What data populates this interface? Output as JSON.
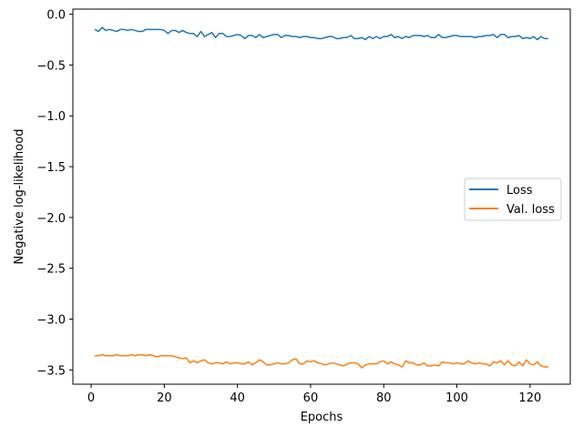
{
  "chart_data": {
    "type": "line",
    "title": "",
    "xlabel": "Epochs",
    "ylabel": "Negative log-likelihood",
    "xlim": [
      -5,
      131
    ],
    "ylim": [
      -3.64,
      0.05
    ],
    "xticks": [
      0,
      20,
      40,
      60,
      80,
      100,
      120
    ],
    "yticks": [
      0.0,
      -0.5,
      -1.0,
      -1.5,
      -2.0,
      -2.5,
      -3.0,
      -3.5
    ],
    "ytick_labels": [
      "0.0",
      "−0.5",
      "−1.0",
      "−1.5",
      "−2.0",
      "−2.5",
      "−3.0",
      "−3.5"
    ],
    "grid": false,
    "legend_position": "center-right",
    "series": [
      {
        "name": "Loss",
        "color": "#1f77b4",
        "base": -0.2,
        "start": -0.15,
        "end": -0.24,
        "points": [
          [
            1,
            -0.15
          ],
          [
            2,
            -0.17
          ],
          [
            3,
            -0.13
          ],
          [
            4,
            -0.16
          ],
          [
            5,
            -0.15
          ],
          [
            6,
            -0.16
          ],
          [
            7,
            -0.17
          ],
          [
            8,
            -0.15
          ],
          [
            9,
            -0.15
          ],
          [
            10,
            -0.16
          ],
          [
            11,
            -0.15
          ],
          [
            12,
            -0.16
          ],
          [
            13,
            -0.17
          ],
          [
            14,
            -0.17
          ],
          [
            15,
            -0.15
          ],
          [
            16,
            -0.15
          ],
          [
            17,
            -0.15
          ],
          [
            18,
            -0.15
          ],
          [
            19,
            -0.15
          ],
          [
            20,
            -0.16
          ],
          [
            21,
            -0.19
          ],
          [
            22,
            -0.16
          ],
          [
            23,
            -0.16
          ],
          [
            24,
            -0.18
          ],
          [
            25,
            -0.16
          ],
          [
            26,
            -0.18
          ],
          [
            27,
            -0.19
          ],
          [
            28,
            -0.19
          ],
          [
            29,
            -0.22
          ],
          [
            30,
            -0.17
          ],
          [
            31,
            -0.22
          ],
          [
            32,
            -0.2
          ],
          [
            33,
            -0.18
          ],
          [
            34,
            -0.23
          ],
          [
            35,
            -0.19
          ],
          [
            36,
            -0.19
          ],
          [
            37,
            -0.22
          ],
          [
            38,
            -0.22
          ],
          [
            39,
            -0.21
          ],
          [
            40,
            -0.2
          ],
          [
            41,
            -0.21
          ],
          [
            42,
            -0.24
          ],
          [
            43,
            -0.21
          ],
          [
            44,
            -0.21
          ],
          [
            45,
            -0.23
          ],
          [
            46,
            -0.2
          ],
          [
            47,
            -0.23
          ],
          [
            48,
            -0.22
          ],
          [
            49,
            -0.21
          ],
          [
            50,
            -0.2
          ],
          [
            51,
            -0.2
          ],
          [
            52,
            -0.23
          ],
          [
            53,
            -0.21
          ],
          [
            54,
            -0.21
          ],
          [
            55,
            -0.22
          ],
          [
            56,
            -0.22
          ],
          [
            57,
            -0.23
          ],
          [
            58,
            -0.22
          ],
          [
            59,
            -0.22
          ],
          [
            60,
            -0.23
          ],
          [
            61,
            -0.23
          ],
          [
            62,
            -0.24
          ],
          [
            63,
            -0.24
          ],
          [
            64,
            -0.23
          ],
          [
            65,
            -0.22
          ],
          [
            66,
            -0.22
          ],
          [
            67,
            -0.24
          ],
          [
            68,
            -0.24
          ],
          [
            69,
            -0.23
          ],
          [
            70,
            -0.23
          ],
          [
            71,
            -0.21
          ],
          [
            72,
            -0.24
          ],
          [
            73,
            -0.24
          ],
          [
            74,
            -0.23
          ],
          [
            75,
            -0.25
          ],
          [
            76,
            -0.22
          ],
          [
            77,
            -0.24
          ],
          [
            78,
            -0.22
          ],
          [
            79,
            -0.24
          ],
          [
            80,
            -0.22
          ],
          [
            81,
            -0.22
          ],
          [
            82,
            -0.2
          ],
          [
            83,
            -0.23
          ],
          [
            84,
            -0.22
          ],
          [
            85,
            -0.24
          ],
          [
            86,
            -0.22
          ],
          [
            87,
            -0.23
          ],
          [
            88,
            -0.21
          ],
          [
            89,
            -0.21
          ],
          [
            90,
            -0.21
          ],
          [
            91,
            -0.22
          ],
          [
            92,
            -0.21
          ],
          [
            93,
            -0.23
          ],
          [
            94,
            -0.23
          ],
          [
            95,
            -0.2
          ],
          [
            96,
            -0.23
          ],
          [
            97,
            -0.23
          ],
          [
            98,
            -0.22
          ],
          [
            99,
            -0.21
          ],
          [
            100,
            -0.21
          ],
          [
            101,
            -0.22
          ],
          [
            102,
            -0.22
          ],
          [
            103,
            -0.22
          ],
          [
            104,
            -0.22
          ],
          [
            105,
            -0.23
          ],
          [
            106,
            -0.22
          ],
          [
            107,
            -0.22
          ],
          [
            108,
            -0.21
          ],
          [
            109,
            -0.21
          ],
          [
            110,
            -0.2
          ],
          [
            111,
            -0.23
          ],
          [
            112,
            -0.2
          ],
          [
            113,
            -0.2
          ],
          [
            114,
            -0.23
          ],
          [
            115,
            -0.22
          ],
          [
            116,
            -0.22
          ],
          [
            117,
            -0.21
          ],
          [
            118,
            -0.24
          ],
          [
            119,
            -0.23
          ],
          [
            120,
            -0.24
          ],
          [
            121,
            -0.22
          ],
          [
            122,
            -0.25
          ],
          [
            123,
            -0.22
          ],
          [
            124,
            -0.24
          ],
          [
            125,
            -0.24
          ]
        ]
      },
      {
        "name": "Val. loss",
        "color": "#ff7f0e",
        "points": [
          [
            1,
            -3.36
          ],
          [
            2,
            -3.36
          ],
          [
            3,
            -3.35
          ],
          [
            4,
            -3.36
          ],
          [
            5,
            -3.36
          ],
          [
            6,
            -3.36
          ],
          [
            7,
            -3.35
          ],
          [
            8,
            -3.36
          ],
          [
            9,
            -3.36
          ],
          [
            10,
            -3.36
          ],
          [
            11,
            -3.35
          ],
          [
            12,
            -3.36
          ],
          [
            13,
            -3.35
          ],
          [
            14,
            -3.35
          ],
          [
            15,
            -3.36
          ],
          [
            16,
            -3.35
          ],
          [
            17,
            -3.36
          ],
          [
            18,
            -3.37
          ],
          [
            19,
            -3.36
          ],
          [
            20,
            -3.36
          ],
          [
            21,
            -3.36
          ],
          [
            22,
            -3.36
          ],
          [
            23,
            -3.37
          ],
          [
            24,
            -3.38
          ],
          [
            25,
            -3.39
          ],
          [
            26,
            -3.38
          ],
          [
            27,
            -3.43
          ],
          [
            28,
            -3.41
          ],
          [
            29,
            -3.43
          ],
          [
            30,
            -3.41
          ],
          [
            31,
            -3.4
          ],
          [
            32,
            -3.43
          ],
          [
            33,
            -3.44
          ],
          [
            34,
            -3.43
          ],
          [
            35,
            -3.43
          ],
          [
            36,
            -3.44
          ],
          [
            37,
            -3.42
          ],
          [
            38,
            -3.44
          ],
          [
            39,
            -3.43
          ],
          [
            40,
            -3.43
          ],
          [
            41,
            -3.44
          ],
          [
            42,
            -3.44
          ],
          [
            43,
            -3.42
          ],
          [
            44,
            -3.45
          ],
          [
            45,
            -3.43
          ],
          [
            46,
            -3.4
          ],
          [
            47,
            -3.42
          ],
          [
            48,
            -3.45
          ],
          [
            49,
            -3.45
          ],
          [
            50,
            -3.44
          ],
          [
            51,
            -3.43
          ],
          [
            52,
            -3.44
          ],
          [
            53,
            -3.44
          ],
          [
            54,
            -3.43
          ],
          [
            55,
            -3.4
          ],
          [
            56,
            -3.39
          ],
          [
            57,
            -3.44
          ],
          [
            58,
            -3.44
          ],
          [
            59,
            -3.41
          ],
          [
            60,
            -3.42
          ],
          [
            61,
            -3.41
          ],
          [
            62,
            -3.43
          ],
          [
            63,
            -3.44
          ],
          [
            64,
            -3.45
          ],
          [
            65,
            -3.44
          ],
          [
            66,
            -3.43
          ],
          [
            67,
            -3.44
          ],
          [
            68,
            -3.45
          ],
          [
            69,
            -3.46
          ],
          [
            70,
            -3.44
          ],
          [
            71,
            -3.43
          ],
          [
            72,
            -3.43
          ],
          [
            73,
            -3.44
          ],
          [
            74,
            -3.48
          ],
          [
            75,
            -3.45
          ],
          [
            76,
            -3.44
          ],
          [
            77,
            -3.44
          ],
          [
            78,
            -3.44
          ],
          [
            79,
            -3.42
          ],
          [
            80,
            -3.41
          ],
          [
            81,
            -3.44
          ],
          [
            82,
            -3.42
          ],
          [
            83,
            -3.44
          ],
          [
            84,
            -3.45
          ],
          [
            85,
            -3.47
          ],
          [
            86,
            -3.41
          ],
          [
            87,
            -3.43
          ],
          [
            88,
            -3.43
          ],
          [
            89,
            -3.45
          ],
          [
            90,
            -3.45
          ],
          [
            91,
            -3.43
          ],
          [
            92,
            -3.46
          ],
          [
            93,
            -3.46
          ],
          [
            94,
            -3.45
          ],
          [
            95,
            -3.46
          ],
          [
            96,
            -3.42
          ],
          [
            97,
            -3.43
          ],
          [
            98,
            -3.43
          ],
          [
            99,
            -3.44
          ],
          [
            100,
            -3.43
          ],
          [
            101,
            -3.44
          ],
          [
            102,
            -3.44
          ],
          [
            103,
            -3.41
          ],
          [
            104,
            -3.43
          ],
          [
            105,
            -3.44
          ],
          [
            106,
            -3.43
          ],
          [
            107,
            -3.44
          ],
          [
            108,
            -3.44
          ],
          [
            109,
            -3.46
          ],
          [
            110,
            -3.42
          ],
          [
            111,
            -3.43
          ],
          [
            112,
            -3.41
          ],
          [
            113,
            -3.45
          ],
          [
            114,
            -3.41
          ],
          [
            115,
            -3.45
          ],
          [
            116,
            -3.46
          ],
          [
            117,
            -3.42
          ],
          [
            118,
            -3.46
          ],
          [
            119,
            -3.4
          ],
          [
            120,
            -3.44
          ],
          [
            121,
            -3.45
          ],
          [
            122,
            -3.42
          ],
          [
            123,
            -3.46
          ],
          [
            124,
            -3.47
          ],
          [
            125,
            -3.47
          ]
        ]
      }
    ]
  }
}
